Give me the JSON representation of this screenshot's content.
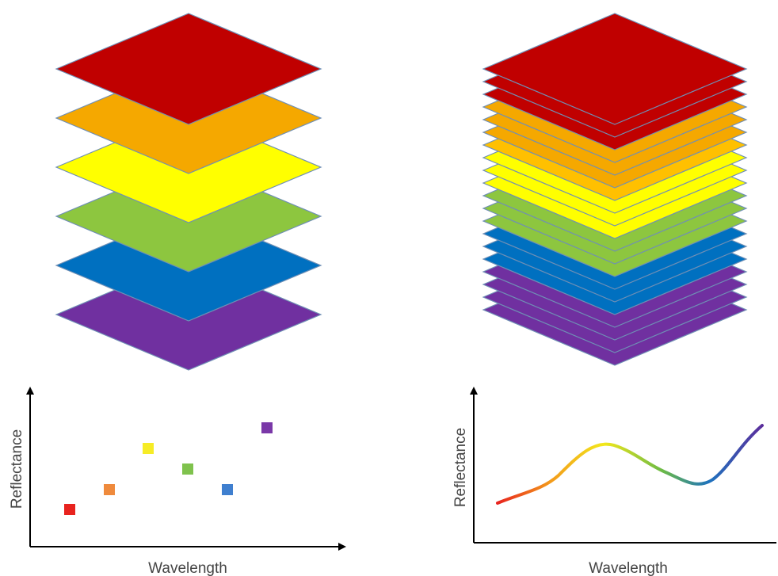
{
  "panels": [
    {
      "y_label": "Reflectance",
      "x_label": "Wavelength"
    },
    {
      "y_label": "Reflectance",
      "x_label": "Wavelength"
    }
  ]
}
